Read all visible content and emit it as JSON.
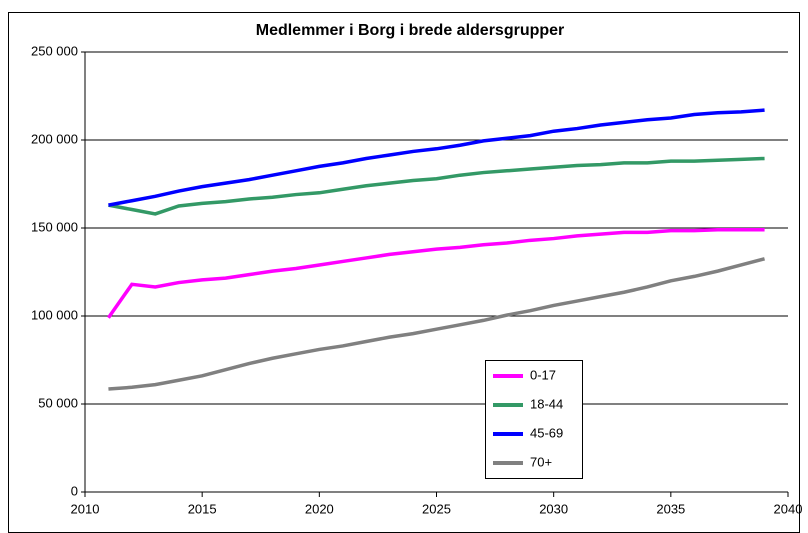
{
  "chart_data": {
    "type": "line",
    "title": "Medlemmer i Borg i brede aldersgrupper",
    "x": [
      2011,
      2012,
      2013,
      2014,
      2015,
      2016,
      2017,
      2018,
      2019,
      2020,
      2021,
      2022,
      2023,
      2024,
      2025,
      2026,
      2027,
      2028,
      2029,
      2030,
      2031,
      2032,
      2033,
      2034,
      2035,
      2036,
      2037,
      2038,
      2039
    ],
    "series": [
      {
        "name": "0-17",
        "color": "#ff00ff",
        "values": [
          99000,
          118000,
          116500,
          119000,
          120500,
          121500,
          123500,
          125500,
          127000,
          129000,
          131000,
          133000,
          135000,
          136500,
          138000,
          139000,
          140500,
          141500,
          143000,
          144000,
          145500,
          146500,
          147500,
          147500,
          148500,
          148500,
          149000,
          149000,
          149000
        ]
      },
      {
        "name": "18-44",
        "color": "#339966",
        "values": [
          163000,
          160500,
          158000,
          162500,
          164000,
          165000,
          166500,
          167500,
          169000,
          170000,
          172000,
          174000,
          175500,
          177000,
          178000,
          180000,
          181500,
          182500,
          183500,
          184500,
          185500,
          186000,
          187000,
          187000,
          188000,
          188000,
          188500,
          189000,
          189500
        ]
      },
      {
        "name": "45-69",
        "color": "#0000ff",
        "values": [
          163000,
          165500,
          168000,
          171000,
          173500,
          175500,
          177500,
          180000,
          182500,
          185000,
          187000,
          189500,
          191500,
          193500,
          195000,
          197000,
          199500,
          201000,
          202500,
          205000,
          206500,
          208500,
          210000,
          211500,
          212500,
          214500,
          215500,
          216000,
          217000
        ]
      },
      {
        "name": "70+",
        "color": "#808080",
        "values": [
          58500,
          59500,
          61000,
          63500,
          66000,
          69500,
          73000,
          76000,
          78500,
          81000,
          83000,
          85500,
          88000,
          90000,
          92500,
          95000,
          97500,
          100500,
          103000,
          106000,
          108500,
          111000,
          113500,
          116500,
          120000,
          122500,
          125500,
          129000,
          132500
        ]
      }
    ],
    "xlim": [
      2010,
      2040
    ],
    "xticks": [
      2010,
      2015,
      2020,
      2025,
      2030,
      2035,
      2040
    ],
    "ylim": [
      0,
      250000
    ],
    "yticks": [
      0,
      {
        "value": 50000,
        "label": "50 000"
      },
      {
        "value": 100000,
        "label": "100 000"
      },
      {
        "value": 150000,
        "label": "150 000"
      },
      {
        "value": 200000,
        "label": "200 000"
      },
      {
        "value": 250000,
        "label": "250 000"
      }
    ],
    "grid": true
  }
}
